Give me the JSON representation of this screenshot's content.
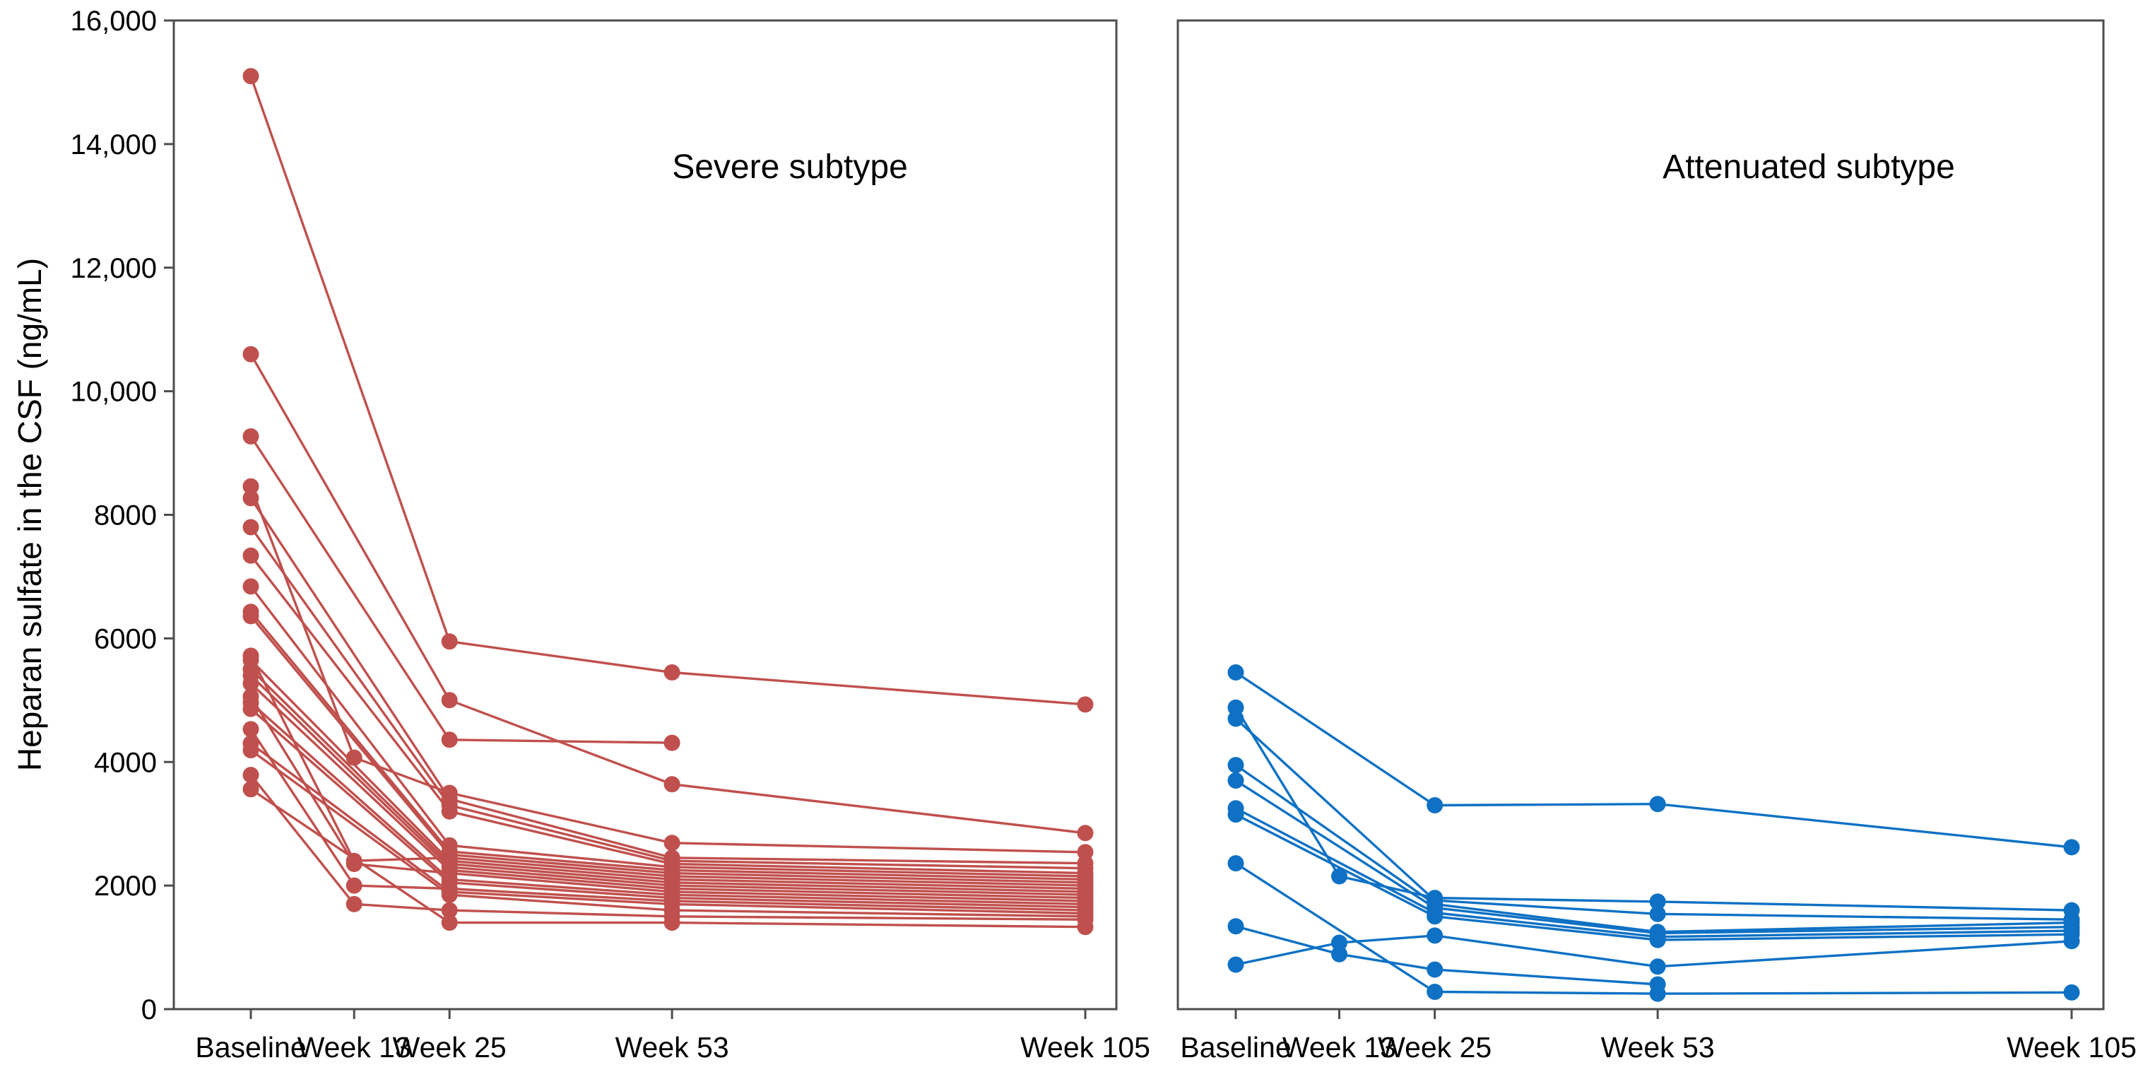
{
  "figure": {
    "y_axis_title": "Heparan sulfate in the CSF (ng/mL)",
    "x_tick_labels": [
      "Baseline",
      "Week 13",
      "Week 25",
      "Week 53",
      "Week 105"
    ],
    "y_tick_labels": [
      "0",
      "2000",
      "4000",
      "6000",
      "8000",
      "10,000",
      "12,000",
      "14,000",
      "16,000"
    ],
    "y_tick_values": [
      0,
      2000,
      4000,
      6000,
      8000,
      10000,
      12000,
      14000,
      16000
    ]
  },
  "colors": {
    "severe": "#C0504D",
    "attenuated": "#0E71C4",
    "axis": "#4D4D4D",
    "text": "#000000"
  },
  "chart_data": [
    {
      "type": "line",
      "title": "Severe subtype",
      "color_key": "severe",
      "x": [
        0,
        13,
        25,
        53,
        105
      ],
      "x_labels": [
        "Baseline",
        "Week 13",
        "Week 25",
        "Week 53",
        "Week 105"
      ],
      "xlabel": "",
      "ylabel": "Heparan sulfate in the CSF (ng/mL)",
      "ylim": [
        0,
        16000
      ],
      "grid": false,
      "legend": "none",
      "series": [
        {
          "name": "severe-line-1",
          "values": [
            15100,
            null,
            5950,
            5450,
            4930
          ]
        },
        {
          "name": "severe-line-2",
          "values": [
            10600,
            null,
            5000,
            3640,
            2850
          ]
        },
        {
          "name": "severe-line-3",
          "values": [
            9270,
            null,
            4360,
            4310,
            null
          ]
        },
        {
          "name": "severe-line-4",
          "values": [
            8460,
            4070,
            3500,
            2690,
            2540
          ]
        },
        {
          "name": "severe-line-5",
          "values": [
            8270,
            null,
            3400,
            2450,
            2360
          ]
        },
        {
          "name": "severe-line-6",
          "values": [
            7800,
            null,
            3300,
            2400,
            2280
          ]
        },
        {
          "name": "severe-line-7",
          "values": [
            7340,
            null,
            3200,
            2350,
            2200
          ]
        },
        {
          "name": "severe-line-8",
          "values": [
            6840,
            null,
            2650,
            2300,
            2150
          ]
        },
        {
          "name": "severe-line-9",
          "values": [
            6430,
            null,
            2550,
            2250,
            2100
          ]
        },
        {
          "name": "severe-line-10",
          "values": [
            6360,
            null,
            2500,
            2200,
            2050
          ]
        },
        {
          "name": "severe-line-11",
          "values": [
            5720,
            2400,
            2450,
            2150,
            2000
          ]
        },
        {
          "name": "severe-line-12",
          "values": [
            5650,
            null,
            2400,
            2100,
            1950
          ]
        },
        {
          "name": "severe-line-13",
          "values": [
            5500,
            null,
            2350,
            2050,
            1900
          ]
        },
        {
          "name": "severe-line-14",
          "values": [
            5400,
            null,
            2300,
            2000,
            1850
          ]
        },
        {
          "name": "severe-line-15",
          "values": [
            5270,
            null,
            2250,
            1950,
            1800
          ]
        },
        {
          "name": "severe-line-16",
          "values": [
            5060,
            2350,
            2200,
            1900,
            1750
          ]
        },
        {
          "name": "severe-line-17",
          "values": [
            4960,
            null,
            2100,
            1850,
            1700
          ]
        },
        {
          "name": "severe-line-18",
          "values": [
            4860,
            null,
            2050,
            1800,
            1650
          ]
        },
        {
          "name": "severe-line-19",
          "values": [
            4530,
            2000,
            1950,
            1750,
            1600
          ]
        },
        {
          "name": "severe-line-20",
          "values": [
            4300,
            null,
            1900,
            1700,
            1550
          ]
        },
        {
          "name": "severe-line-21",
          "values": [
            4190,
            null,
            1850,
            1600,
            1500
          ]
        },
        {
          "name": "severe-line-22",
          "values": [
            3790,
            1700,
            1600,
            1500,
            1450
          ]
        },
        {
          "name": "severe-line-23",
          "values": [
            3560,
            null,
            1400,
            1400,
            1330
          ]
        }
      ]
    },
    {
      "type": "line",
      "title": "Attenuated subtype",
      "color_key": "attenuated",
      "x": [
        0,
        13,
        25,
        53,
        105
      ],
      "x_labels": [
        "Baseline",
        "Week 13",
        "Week 25",
        "Week 53",
        "Week 105"
      ],
      "xlabel": "",
      "ylabel": "Heparan sulfate in the CSF (ng/mL)",
      "ylim": [
        0,
        16000
      ],
      "grid": false,
      "legend": "none",
      "series": [
        {
          "name": "attenuated-line-1",
          "values": [
            5450,
            null,
            3300,
            3320,
            2620
          ]
        },
        {
          "name": "attenuated-line-2",
          "values": [
            4880,
            2150,
            1800,
            1740,
            1600
          ]
        },
        {
          "name": "attenuated-line-3",
          "values": [
            4700,
            null,
            1760,
            1540,
            1450
          ]
        },
        {
          "name": "attenuated-line-4",
          "values": [
            3950,
            null,
            1700,
            1250,
            1400
          ]
        },
        {
          "name": "attenuated-line-5",
          "values": [
            3700,
            null,
            1640,
            1230,
            1330
          ]
        },
        {
          "name": "attenuated-line-6",
          "values": [
            3250,
            null,
            1560,
            1170,
            1270
          ]
        },
        {
          "name": "attenuated-line-7",
          "values": [
            3150,
            null,
            1500,
            1120,
            1210
          ]
        },
        {
          "name": "attenuated-line-8",
          "values": [
            2360,
            null,
            280,
            250,
            270
          ]
        },
        {
          "name": "attenuated-line-9",
          "values": [
            1340,
            890,
            640,
            400,
            null
          ]
        },
        {
          "name": "attenuated-line-10",
          "values": [
            720,
            1075,
            1190,
            690,
            1100
          ]
        }
      ]
    }
  ]
}
